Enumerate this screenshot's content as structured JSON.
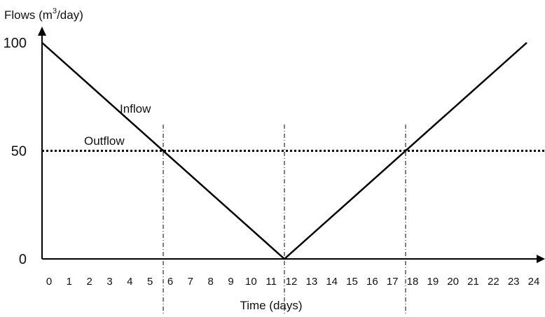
{
  "chart_data": {
    "type": "line",
    "title": "",
    "ylabel": "Flows (m",
    "ylabel_sup": "3",
    "ylabel_suffix": "/day)",
    "xlabel": "Time (days)",
    "xlim": [
      0,
      24
    ],
    "ylim": [
      0,
      100
    ],
    "x_ticks": [
      0,
      1,
      2,
      3,
      4,
      5,
      6,
      7,
      8,
      9,
      10,
      11,
      12,
      13,
      14,
      15,
      16,
      17,
      18,
      19,
      20,
      21,
      22,
      23,
      24
    ],
    "y_ticks": [
      0,
      50,
      100
    ],
    "grid": false,
    "series": [
      {
        "name": "Inflow",
        "style": "solid",
        "color": "#000000",
        "x": [
          0,
          12,
          24
        ],
        "y": [
          100,
          0,
          100
        ]
      },
      {
        "name": "Outflow",
        "style": "dotted",
        "color": "#000000",
        "x": [
          0,
          24
        ],
        "y": [
          50,
          50
        ]
      }
    ],
    "reference_lines_x": [
      6,
      12,
      18
    ]
  }
}
